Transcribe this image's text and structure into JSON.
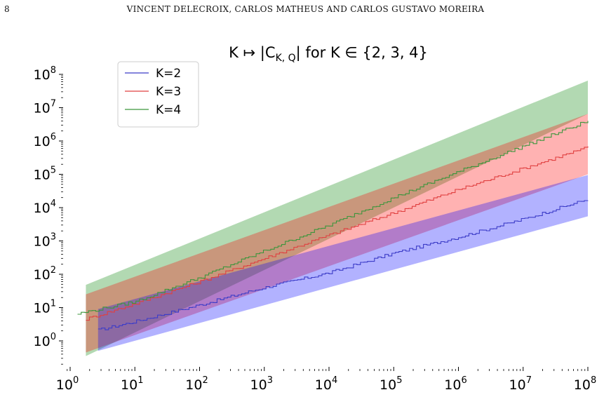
{
  "page": {
    "number": "8",
    "running_head": "VINCENT DELECROIX, CARLOS MATHEUS AND CARLOS GUSTAVO MOREIRA"
  },
  "chart_data": {
    "type": "line",
    "title": "K ↦ |C_{K,Q}| for K ∈ {2, 3, 4}",
    "title_parts": {
      "prefix": "K ↦ |C",
      "subscript": "K, Q",
      "suffix": "| for K ∈ {2, 3, 4}"
    },
    "xlabel": "",
    "ylabel": "",
    "xscale": "log",
    "yscale": "log",
    "xlim": [
      0.68,
      260000000
    ],
    "ylim": [
      0.2,
      150000000
    ],
    "x_ticks": [
      {
        "base": "10",
        "exp": "0",
        "value": 1
      },
      {
        "base": "10",
        "exp": "1",
        "value": 10
      },
      {
        "base": "10",
        "exp": "2",
        "value": 100
      },
      {
        "base": "10",
        "exp": "3",
        "value": 1000
      },
      {
        "base": "10",
        "exp": "4",
        "value": 10000
      },
      {
        "base": "10",
        "exp": "5",
        "value": 100000
      },
      {
        "base": "10",
        "exp": "6",
        "value": 1000000
      },
      {
        "base": "10",
        "exp": "7",
        "value": 10000000
      },
      {
        "base": "10",
        "exp": "8",
        "value": 100000000
      }
    ],
    "y_ticks": [
      {
        "base": "10",
        "exp": "0",
        "value": 1
      },
      {
        "base": "10",
        "exp": "1",
        "value": 10
      },
      {
        "base": "10",
        "exp": "2",
        "value": 100
      },
      {
        "base": "10",
        "exp": "3",
        "value": 1000
      },
      {
        "base": "10",
        "exp": "4",
        "value": 10000
      },
      {
        "base": "10",
        "exp": "5",
        "value": 100000
      },
      {
        "base": "10",
        "exp": "6",
        "value": 1000000
      },
      {
        "base": "10",
        "exp": "7",
        "value": 10000000
      },
      {
        "base": "10",
        "exp": "8",
        "value": 100000000
      }
    ],
    "grid": false,
    "legend_position": "upper-left",
    "series": [
      {
        "name": "K=2",
        "color": "#3c3cc8",
        "band_color": "#0000ff",
        "band_opacity": 0.3,
        "band_x": [
          2.7,
          100000000
        ],
        "band_lower": [
          0.5,
          5500
        ],
        "band_upper": [
          9,
          95000
        ],
        "line_x": [
          2.7,
          10,
          100,
          1000,
          10000,
          100000,
          1000000,
          10000000,
          100000000
        ],
        "line_y": [
          2.1,
          3.8,
          12,
          40,
          110,
          430,
          1300,
          4500,
          18000
        ]
      },
      {
        "name": "K=3",
        "color": "#e04040",
        "band_color": "#ff0000",
        "band_opacity": 0.3,
        "band_x": [
          1.75,
          100000000
        ],
        "band_lower": [
          0.45,
          100000
        ],
        "band_upper": [
          25,
          6500000
        ],
        "line_x": [
          1.75,
          10,
          100,
          1000,
          10000,
          100000,
          1000000,
          10000000,
          100000000
        ],
        "line_y": [
          4.5,
          13,
          60,
          300,
          1500,
          7000,
          35000,
          150000,
          650000
        ]
      },
      {
        "name": "K=4",
        "color": "#3c963c",
        "band_color": "#008000",
        "band_opacity": 0.3,
        "band_x": [
          1.75,
          100000000
        ],
        "band_lower": [
          0.35,
          6500000
        ],
        "band_upper": [
          48,
          65000000
        ],
        "line_x": [
          1.3,
          10,
          100,
          1000,
          10000,
          100000,
          1000000,
          10000000,
          100000000
        ],
        "line_y": [
          6.5,
          15,
          80,
          500,
          3000,
          20000,
          120000,
          700000,
          4000000
        ]
      }
    ]
  }
}
